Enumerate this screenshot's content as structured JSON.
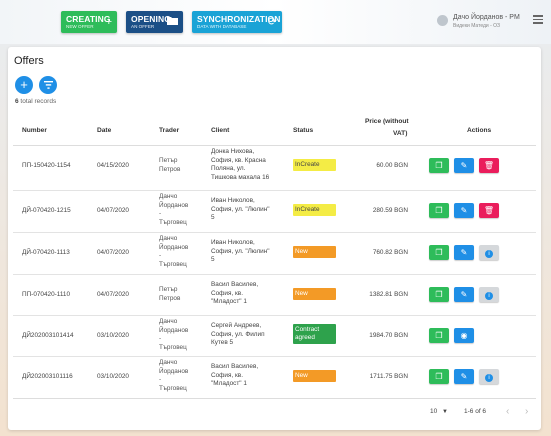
{
  "topbar": {
    "create": {
      "label": "CREATING",
      "sub": "NEW OFFER",
      "icon": "plus-icon"
    },
    "open": {
      "label": "OPENING",
      "sub": "AN OFFER",
      "icon": "folder-icon"
    },
    "sync": {
      "label": "SYNCHRONIZATION",
      "sub": "DATA WITH DATABASE",
      "icon": "refresh-icon"
    },
    "user": {
      "name": "Дачо Йорданов - PM",
      "role": "Видеки Матеди - ОЗ"
    },
    "colors": {
      "create": "#2ebc5a",
      "open": "#1b4f86",
      "sync": "#1aa3d6"
    }
  },
  "page": {
    "title": "Offers",
    "total_count": "6",
    "total_label": " total records"
  },
  "table": {
    "headers": {
      "number": "Number",
      "date": "Date",
      "trader": "Trader",
      "client": "Client",
      "status": "Status",
      "price1": "Price (without",
      "price2": "VAT)",
      "actions": "Actions"
    },
    "rows": [
      {
        "number": "ПП-150420-1154",
        "date": "04/15/2020",
        "trader": [
          "Петър",
          "Петров"
        ],
        "client": [
          "Донка Нихова,",
          "София, кв. Красна",
          "Поляна, ул.",
          "Тишкова махала 16"
        ],
        "status": "InCreate",
        "price": "60.00 BGN",
        "actions": [
          "copy",
          "edit",
          "delete"
        ]
      },
      {
        "number": "ДЙ-070420-1215",
        "date": "04/07/2020",
        "trader": [
          "Данчо",
          "Йорданов",
          "-",
          "Търговец"
        ],
        "client": [
          "Иван Николов,",
          "София, ул. \"Люлин\"",
          "5"
        ],
        "status": "InCreate",
        "price": "280.59 BGN",
        "actions": [
          "copy",
          "edit",
          "delete"
        ]
      },
      {
        "number": "ДЙ-070420-1113",
        "date": "04/07/2020",
        "trader": [
          "Данчо",
          "Йорданов",
          "-",
          "Търговец"
        ],
        "client": [
          "Иван Николов,",
          "София, ул. \"Люлин\"",
          "5"
        ],
        "status": "New",
        "price": "760.82 BGN",
        "actions": [
          "copy",
          "edit",
          "info"
        ]
      },
      {
        "number": "ПП-070420-1110",
        "date": "04/07/2020",
        "trader": [
          "Петър",
          "Петров"
        ],
        "client": [
          "Васил Василев,",
          "София, кв.",
          "\"Младост\" 1"
        ],
        "status": "New",
        "price": "1382.81 BGN",
        "actions": [
          "copy",
          "edit",
          "info"
        ]
      },
      {
        "number": "ДЙ202003101414",
        "date": "03/10/2020",
        "trader": [
          "Данчо",
          "Йорданов",
          "-",
          "Търговец"
        ],
        "client": [
          "Сергей Андреев,",
          "София, ул. Филип",
          "Кутев 5"
        ],
        "status": "Contract agreed",
        "price": "1984.70 BGN",
        "actions": [
          "copy",
          "view"
        ]
      },
      {
        "number": "ДЙ202003101116",
        "date": "03/10/2020",
        "trader": [
          "Данчо",
          "Йорданов",
          "-",
          "Търговец"
        ],
        "client": [
          "Васил Василев,",
          "София, кв.",
          "\"Младост\" 1"
        ],
        "status": "New",
        "price": "1711.75 BGN",
        "actions": [
          "copy",
          "edit",
          "info"
        ]
      }
    ]
  },
  "footer": {
    "per_page": "10",
    "range": "1-6 of 6"
  },
  "status_colors": {
    "InCreate": "#f4ec45",
    "New": "#f39a26",
    "Contract agreed": "#2ea24c"
  }
}
